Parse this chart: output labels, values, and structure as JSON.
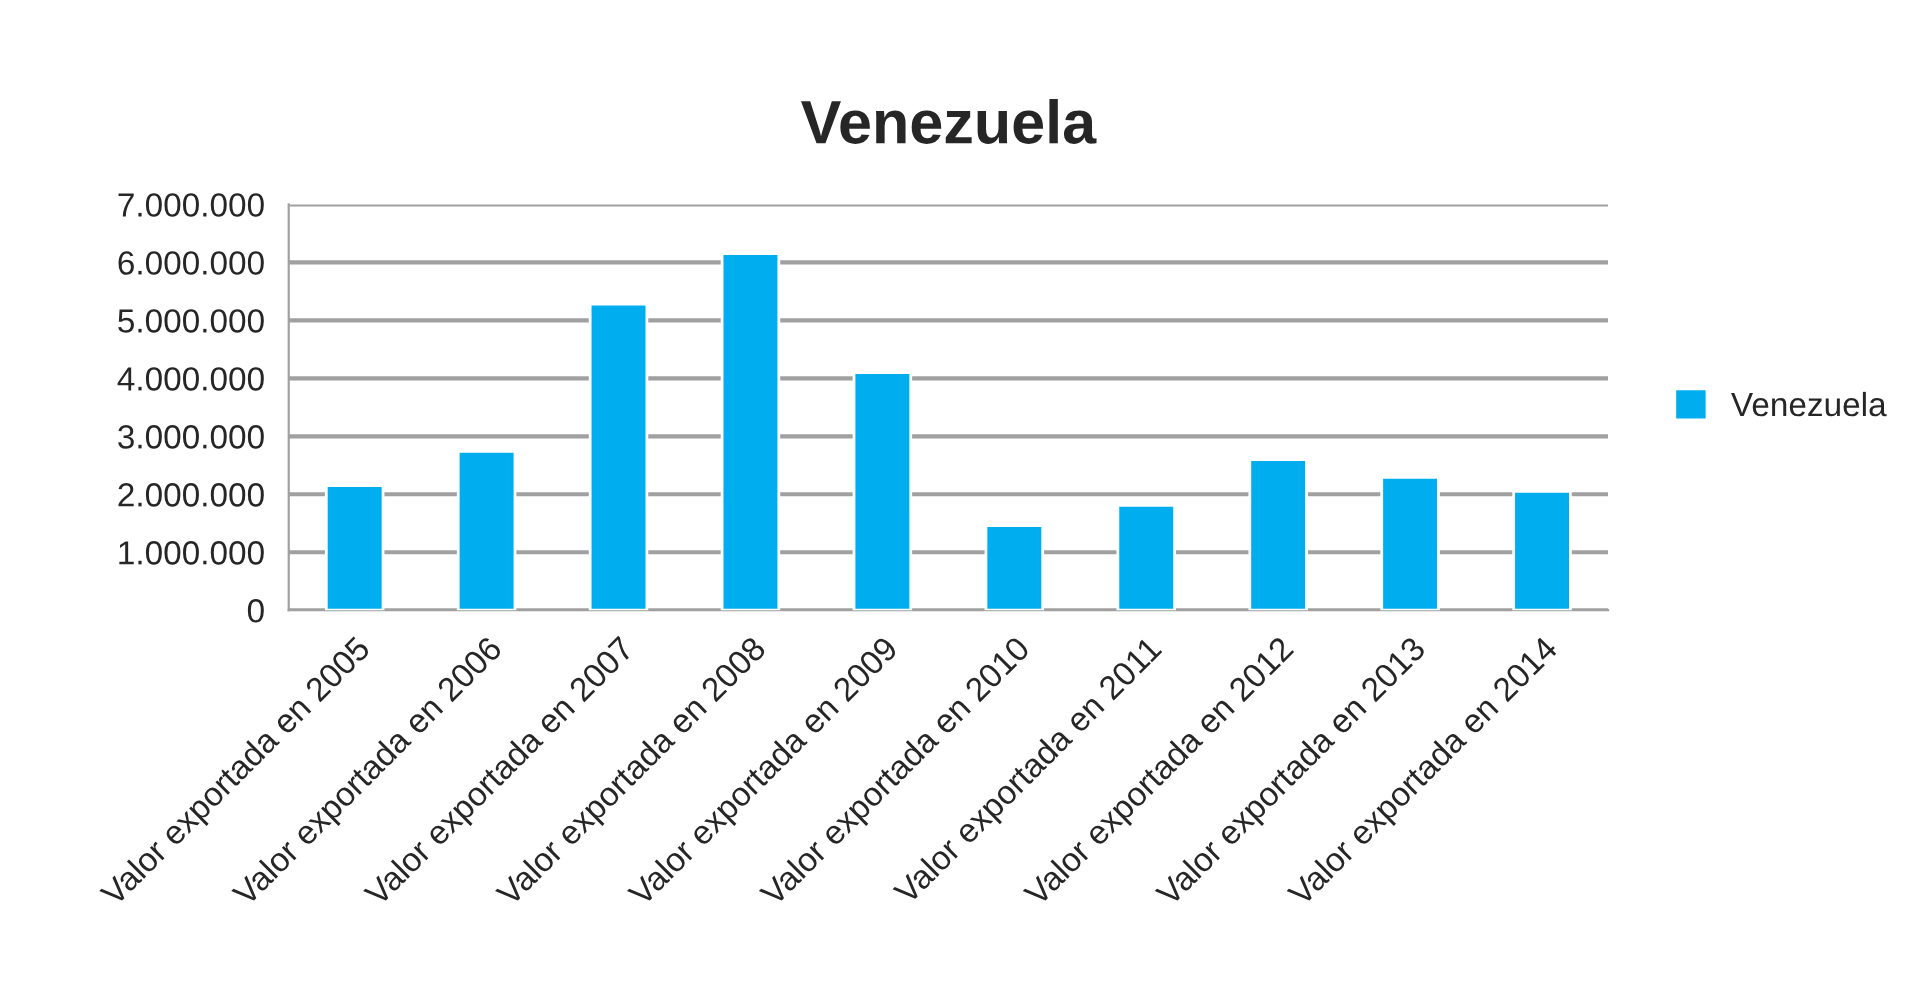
{
  "chart_data": {
    "type": "bar",
    "title": "Venezuela",
    "categories": [
      "Valor exportada en 2005",
      "Valor exportada en 2006",
      "Valor exportada en 2007",
      "Valor exportada en 2008",
      "Valor exportada en 2009",
      "Valor exportada en 2010",
      "Valor exportada en 2011",
      "Valor exportada en 2012",
      "Valor exportada en 2013",
      "Valor exportada en 2014"
    ],
    "series": [
      {
        "name": "Venezuela",
        "color": "#00aeef",
        "values": [
          2150000,
          2740000,
          5280000,
          6150000,
          4100000,
          1460000,
          1810000,
          2600000,
          2290000,
          2050000
        ]
      }
    ],
    "ylim": [
      0,
      7000000
    ],
    "yticks": [
      0,
      {
        "value": 1000000,
        "label": "1.000.000"
      },
      {
        "value": 2000000,
        "label": "2.000.000"
      },
      {
        "value": 3000000,
        "label": "3.000.000"
      },
      {
        "value": 4000000,
        "label": "4.000.000"
      },
      {
        "value": 5000000,
        "label": "5.000.000"
      },
      {
        "value": 6000000,
        "label": "6.000.000"
      },
      {
        "value": 7000000,
        "label": "7.000.000"
      }
    ],
    "grid": "y",
    "legend": "right"
  }
}
